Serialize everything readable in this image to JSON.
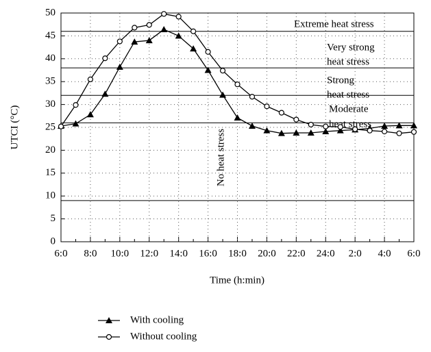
{
  "chart_data": {
    "type": "line",
    "x_label": "Time (h:min)",
    "y_label": "UTCI (°C)",
    "categories": [
      "6:0",
      null,
      "8:0",
      null,
      "10:0",
      null,
      "12:0",
      null,
      "14:0",
      null,
      "16:0",
      null,
      "18:0",
      null,
      "20:0",
      null,
      "22:0",
      null,
      "24:0",
      null,
      "2:0",
      null,
      "4:0",
      null,
      "6:0"
    ],
    "series": [
      {
        "name": "With cooling",
        "color": "#000000",
        "marker": "triangle",
        "values": [
          25.3,
          25.8,
          27.8,
          32.3,
          38.2,
          43.7,
          44,
          46.4,
          45,
          42.2,
          37.5,
          32.1,
          27.1,
          25.3,
          24.3,
          23.7,
          23.8,
          23.8,
          24.1,
          24.3,
          24.5,
          24.8,
          25.3,
          25.4,
          25.4
        ]
      },
      {
        "name": "Without cooling",
        "color": "#000000",
        "marker": "circle",
        "values": [
          25.2,
          29.9,
          35.5,
          40.1,
          43.8,
          46.8,
          47.4,
          49.8,
          49.2,
          46,
          41.5,
          37.4,
          34.4,
          31.7,
          29.6,
          28.2,
          26.7,
          25.6,
          25.2,
          25.1,
          24.6,
          24.3,
          24.1,
          23.7,
          24
        ]
      }
    ],
    "thresholds": [
      9,
      26,
      32,
      38,
      46
    ],
    "zones": [
      [
        "Extreme heat stress"
      ],
      [
        "Very strong",
        "heat stress"
      ],
      [
        "Strong",
        "heat stress"
      ],
      [
        "Moderate",
        "heat stress"
      ],
      [
        "No heat stress"
      ]
    ],
    "ylim": [
      0,
      50
    ],
    "yticks": [
      0,
      5,
      10,
      15,
      20,
      25,
      30,
      35,
      40,
      45,
      50
    ],
    "grid": true
  }
}
